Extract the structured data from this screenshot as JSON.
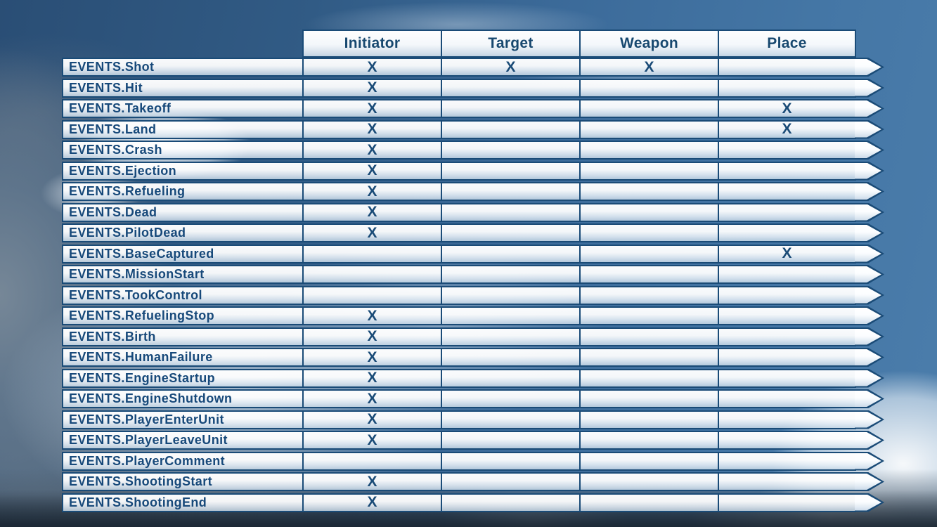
{
  "table": {
    "columns": [
      "Initiator",
      "Target",
      "Weapon",
      "Place"
    ],
    "mark": "X",
    "rows": [
      {
        "label": "EVENTS.Shot",
        "marks": [
          true,
          true,
          true,
          false
        ]
      },
      {
        "label": "EVENTS.Hit",
        "marks": [
          true,
          false,
          false,
          false
        ]
      },
      {
        "label": "EVENTS.Takeoff",
        "marks": [
          true,
          false,
          false,
          true
        ]
      },
      {
        "label": "EVENTS.Land",
        "marks": [
          true,
          false,
          false,
          true
        ]
      },
      {
        "label": "EVENTS.Crash",
        "marks": [
          true,
          false,
          false,
          false
        ]
      },
      {
        "label": "EVENTS.Ejection",
        "marks": [
          true,
          false,
          false,
          false
        ]
      },
      {
        "label": "EVENTS.Refueling",
        "marks": [
          true,
          false,
          false,
          false
        ]
      },
      {
        "label": "EVENTS.Dead",
        "marks": [
          true,
          false,
          false,
          false
        ]
      },
      {
        "label": "EVENTS.PilotDead",
        "marks": [
          true,
          false,
          false,
          false
        ]
      },
      {
        "label": "EVENTS.BaseCaptured",
        "marks": [
          false,
          false,
          false,
          true
        ]
      },
      {
        "label": "EVENTS.MissionStart",
        "marks": [
          false,
          false,
          false,
          false
        ]
      },
      {
        "label": "EVENTS.TookControl",
        "marks": [
          false,
          false,
          false,
          false
        ]
      },
      {
        "label": "EVENTS.RefuelingStop",
        "marks": [
          true,
          false,
          false,
          false
        ]
      },
      {
        "label": "EVENTS.Birth",
        "marks": [
          true,
          false,
          false,
          false
        ]
      },
      {
        "label": "EVENTS.HumanFailure",
        "marks": [
          true,
          false,
          false,
          false
        ]
      },
      {
        "label": "EVENTS.EngineStartup",
        "marks": [
          true,
          false,
          false,
          false
        ]
      },
      {
        "label": "EVENTS.EngineShutdown",
        "marks": [
          true,
          false,
          false,
          false
        ]
      },
      {
        "label": "EVENTS.PlayerEnterUnit",
        "marks": [
          true,
          false,
          false,
          false
        ]
      },
      {
        "label": "EVENTS.PlayerLeaveUnit",
        "marks": [
          true,
          false,
          false,
          false
        ]
      },
      {
        "label": "EVENTS.PlayerComment",
        "marks": [
          false,
          false,
          false,
          false
        ]
      },
      {
        "label": "EVENTS.ShootingStart",
        "marks": [
          true,
          false,
          false,
          false
        ]
      },
      {
        "label": "EVENTS.ShootingEnd",
        "marks": [
          true,
          false,
          false,
          false
        ]
      }
    ]
  },
  "colors": {
    "accent_navy": "#1a4b77",
    "header_text": "#17486f",
    "label_text": "#17497a",
    "sky_blue": "#4679a8",
    "sky_dark_top_left": "#2a4e75",
    "cloud_grey": "#70828f",
    "row_fill_top": "#ffffff",
    "row_fill_bottom": "#cadae8"
  }
}
